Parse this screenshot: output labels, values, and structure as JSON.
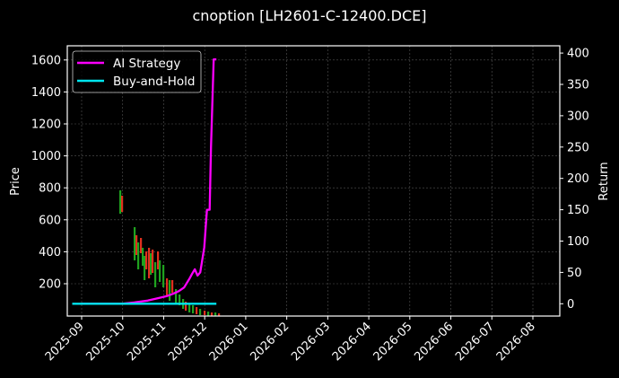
{
  "title": "cnoption [LH2601-C-12400.DCE]",
  "chart_data": {
    "type": "line",
    "title": "cnoption [LH2601-C-12400.DCE]",
    "xlabel": "",
    "ylabel": "Price",
    "y2label": "Return",
    "ylim": [
      0,
      1680
    ],
    "y2lim": [
      -20,
      405
    ],
    "grid": true,
    "legend_position": "upper left",
    "x_ticks": [
      "2025-09",
      "2025-10",
      "2025-11",
      "2025-12",
      "2026-01",
      "2026-02",
      "2026-03",
      "2026-04",
      "2026-05",
      "2026-06",
      "2026-07",
      "2026-08"
    ],
    "y_ticks": [
      200,
      400,
      600,
      800,
      1000,
      1200,
      1400,
      1600
    ],
    "y2_ticks": [
      0,
      50,
      100,
      150,
      200,
      250,
      300,
      350,
      400
    ],
    "legend": [
      "AI Strategy",
      "Buy-and-Hold"
    ],
    "series": [
      {
        "name": "AI Strategy",
        "axis": "right",
        "color": "#ff00ff",
        "x": [
          "2025-09-01",
          "2025-09-15",
          "2025-10-01",
          "2025-10-10",
          "2025-10-20",
          "2025-10-28",
          "2025-11-03",
          "2025-11-08",
          "2025-11-12",
          "2025-11-16",
          "2025-11-20",
          "2025-11-22",
          "2025-11-24",
          "2025-11-26",
          "2025-11-28",
          "2025-12-01",
          "2025-12-03",
          "2025-12-05",
          "2025-12-06",
          "2025-12-08",
          "2025-12-09",
          "2025-12-10"
        ],
        "values": [
          0,
          0,
          0,
          2,
          5,
          9,
          12,
          16,
          20,
          26,
          40,
          48,
          55,
          45,
          50,
          90,
          150,
          150,
          250,
          390,
          390,
          390
        ]
      },
      {
        "name": "Buy-and-Hold",
        "axis": "right",
        "color": "#00e5ee",
        "x": [
          "2025-08-25",
          "2025-12-10"
        ],
        "values": [
          0,
          0
        ]
      },
      {
        "name": "Price (candlestick)",
        "axis": "left",
        "type": "candlestick",
        "up_color": "#1fa31f",
        "down_color": "#e0301e",
        "x": [
          "2025-09-26",
          "2025-10-01",
          "2025-10-05",
          "2025-10-10",
          "2025-10-15",
          "2025-10-20",
          "2025-10-25",
          "2025-10-30",
          "2025-11-05",
          "2025-11-10",
          "2025-11-15",
          "2025-11-20",
          "2025-11-25",
          "2025-11-30",
          "2025-12-05",
          "2025-12-10"
        ],
        "values": [
          700,
          420,
          380,
          420,
          360,
          380,
          330,
          250,
          180,
          150,
          120,
          80,
          50,
          30,
          15,
          10
        ]
      }
    ]
  },
  "legend": {
    "items": [
      {
        "label": "AI Strategy",
        "color": "#ff00ff"
      },
      {
        "label": "Buy-and-Hold",
        "color": "#00e5ee"
      }
    ]
  },
  "axes": {
    "left_label": "Price",
    "right_label": "Return",
    "left_ticks": [
      "200",
      "400",
      "600",
      "800",
      "1000",
      "1200",
      "1400",
      "1600"
    ],
    "right_ticks": [
      "0",
      "50",
      "100",
      "150",
      "200",
      "250",
      "300",
      "350",
      "400"
    ],
    "x_ticks": [
      "2025-09",
      "2025-10",
      "2025-11",
      "2025-12",
      "2026-01",
      "2026-02",
      "2026-03",
      "2026-04",
      "2026-05",
      "2026-06",
      "2026-07",
      "2026-08"
    ]
  }
}
